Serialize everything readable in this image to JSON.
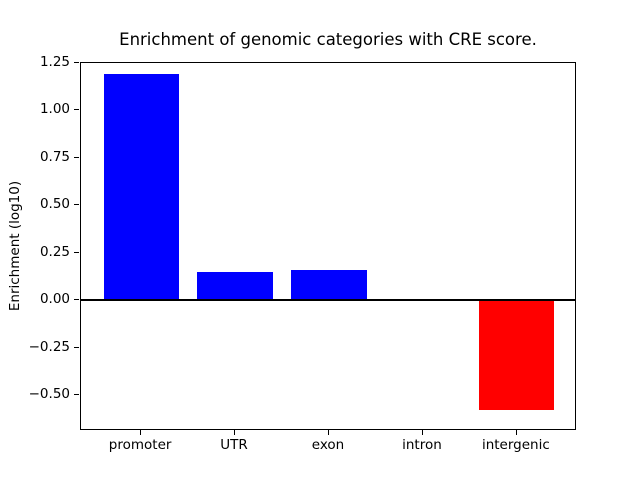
{
  "figure": {
    "background": "#ffffff",
    "axis_color": "#000000",
    "text_color": "#000000"
  },
  "chart_data": {
    "type": "bar",
    "title": "Enrichment of genomic categories with CRE score.",
    "ylabel": "Enrichment (log10)",
    "xlabel": "",
    "categories": [
      "promoter",
      "UTR",
      "exon",
      "intron",
      "intergenic"
    ],
    "values": [
      1.19,
      0.15,
      0.16,
      0.0,
      -0.58
    ],
    "bar_colors": [
      "#0000ff",
      "#0000ff",
      "#0000ff",
      "#0000ff",
      "#ff0000"
    ],
    "positive_color": "#0000ff",
    "negative_color": "#ff0000",
    "yticks": [
      1.25,
      1.0,
      0.75,
      0.5,
      0.25,
      0.0,
      -0.25,
      -0.5
    ],
    "ytick_labels": [
      "1.25",
      "1.00",
      "0.75",
      "0.50",
      "0.25",
      "0.00",
      "−0.25",
      "−0.50"
    ],
    "ylim": [
      -0.69,
      1.25
    ],
    "xlim": [
      -0.64,
      4.64
    ],
    "bar_width": 0.8,
    "zero_line": true,
    "grid": false,
    "legend": null
  }
}
